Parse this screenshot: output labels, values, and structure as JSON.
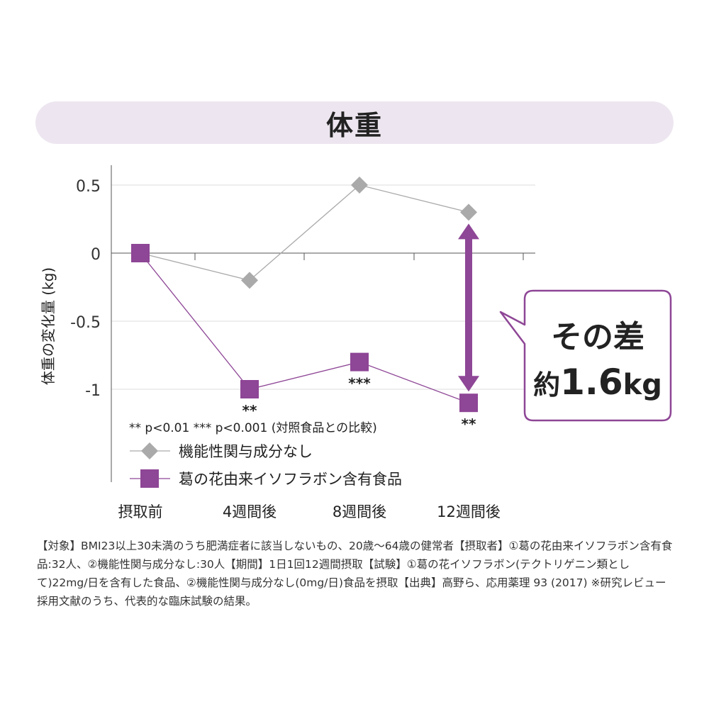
{
  "title": "体重",
  "callout": {
    "line1": "その差",
    "line2_prefix": "約",
    "line2_number": "1.6",
    "line2_unit": "kg"
  },
  "significance_note": "** p<0.01 *** p<0.001 (対照食品との比較)",
  "footnote": "【対象】BMI23以上30未満のうち肥満症者に該当しないもの、20歳〜64歳の健常者【摂取者】①葛の花由来イソフラボン含有食品:32人、②機能性関与成分なし:30人【期間】1日1回12週間摂取【試験】①葛の花イソフラボン(テクトリゲニン類として)22mg/日を含有した食品、②機能性関与成分なし(0mg/日)食品を摂取【出典】高野ら、応用薬理 93 (2017) ※研究レビュー採用文献のうち、代表的な臨床試験の結果。",
  "colors": {
    "control": "#aaaaaa",
    "treatment": "#8e4696",
    "title_bg": "#ede6f0",
    "callout_border": "#8e4696"
  },
  "chart_data": {
    "type": "line",
    "title": "",
    "xlabel": "",
    "ylabel": "体重の変化量 (kg)",
    "categories": [
      "摂取前",
      "4週間後",
      "8週間後",
      "12週間後"
    ],
    "yticks": [
      0.5,
      0,
      -0.5,
      -1
    ],
    "ytick_labels": [
      "0.5",
      "0",
      "-0.5",
      "-1"
    ],
    "ylim": [
      -1.15,
      0.65
    ],
    "legend_position": "bottom-left",
    "series": [
      {
        "name": "機能性関与成分なし",
        "marker": "diamond",
        "values": [
          0,
          -0.2,
          0.5,
          0.3
        ],
        "annotations": [
          "",
          "",
          "",
          ""
        ]
      },
      {
        "name": "葛の花由来イソフラボン含有食品",
        "marker": "square",
        "values": [
          0,
          -1.0,
          -0.8,
          -1.1
        ],
        "annotations": [
          "",
          "**",
          "***",
          "**"
        ]
      }
    ]
  }
}
